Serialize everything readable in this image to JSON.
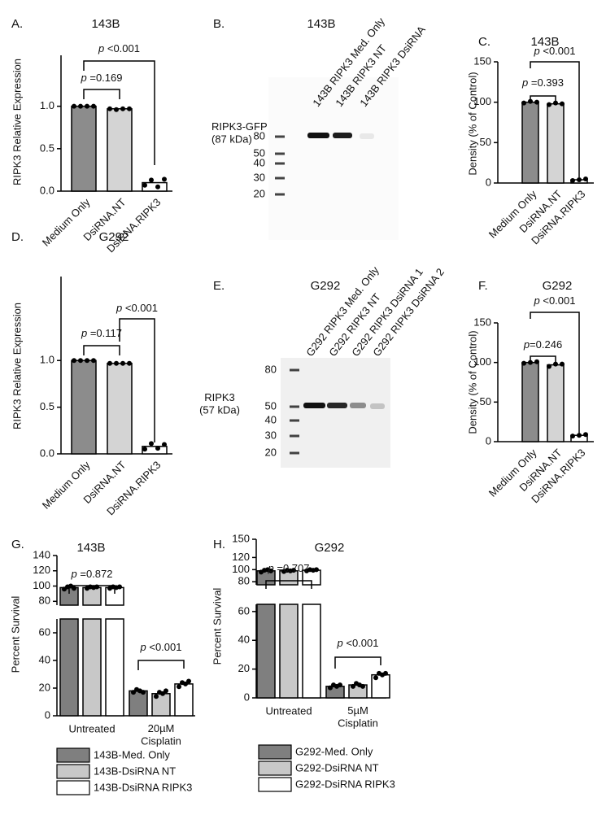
{
  "chart_data": [
    {
      "type": "bar",
      "panel": "A.",
      "title": "143B",
      "ylabel": "RIPK3 Relative Expression",
      "categories": [
        "Medium Only",
        "DsiRNA.NT",
        "DsiRNA.RIPK3"
      ],
      "values": [
        1.0,
        0.97,
        0.1
      ],
      "points": [
        [
          1.0,
          1.0,
          1.0,
          1.0
        ],
        [
          0.97,
          0.96,
          0.97,
          0.97
        ],
        [
          0.07,
          0.13,
          0.05,
          0.14
        ]
      ],
      "colors": [
        "#8c8c8c",
        "#d4d4d4",
        "#ffffff"
      ],
      "ylim": [
        0,
        1.6
      ],
      "yticks": [
        {
          "value": 0,
          "label": "0.0"
        },
        0.5,
        {
          "value": 1,
          "label": "1.0"
        }
      ],
      "annotations": [
        "p =0.169",
        "p <0.001"
      ]
    },
    {
      "type": "bar",
      "panel": "C.",
      "title": "143B",
      "ylabel": "Density (% of Control)",
      "categories": [
        "Medium Only",
        "DsiRNA.NT",
        "DsiRNA.RIPK3"
      ],
      "values": [
        100,
        98,
        4
      ],
      "points": [
        [
          99,
          101,
          100
        ],
        [
          97,
          99,
          98
        ],
        [
          3,
          4,
          5
        ]
      ],
      "colors": [
        "#8c8c8c",
        "#d4d4d4",
        "#ffffff"
      ],
      "ylim": [
        0,
        150
      ],
      "yticks": [
        0,
        50,
        100,
        150
      ],
      "annotations": [
        "p =0.393",
        "p <0.001"
      ]
    },
    {
      "type": "bar",
      "panel": "D.",
      "title": "G292",
      "ylabel": "RIPK3 Relative Expression",
      "categories": [
        "Medium Only",
        "DsiRNA.NT",
        "DsiRNA.RIPK3"
      ],
      "values": [
        1.0,
        0.97,
        0.08
      ],
      "points": [
        [
          1.0,
          1.0,
          1.0,
          1.0
        ],
        [
          0.97,
          0.97,
          0.97,
          0.97
        ],
        [
          0.05,
          0.11,
          0.06,
          0.1
        ]
      ],
      "colors": [
        "#8c8c8c",
        "#d4d4d4",
        "#ffffff"
      ],
      "ylim": [
        0,
        1.9
      ],
      "yticks": [
        {
          "value": 0,
          "label": "0.0"
        },
        0.5,
        {
          "value": 1,
          "label": "1.0"
        }
      ],
      "annotations": [
        "p =0.117",
        "p <0.001"
      ]
    },
    {
      "type": "bar",
      "panel": "F.",
      "title": "G292",
      "ylabel": "Density (% of Control)",
      "categories": [
        "Medium Only",
        "DsiRNA.NT",
        "DsiRNA.RIPK3"
      ],
      "values": [
        100,
        97,
        8
      ],
      "points": [
        [
          99,
          100,
          101
        ],
        [
          95,
          98,
          98
        ],
        [
          7,
          8,
          9
        ]
      ],
      "colors": [
        "#8c8c8c",
        "#d4d4d4",
        "#ffffff"
      ],
      "ylim": [
        0,
        150
      ],
      "yticks": [
        0,
        50,
        100,
        150
      ],
      "annotations": [
        "p=0.246",
        "p <0.001"
      ]
    },
    {
      "type": "grouped_bar",
      "panel": "G.",
      "title": "143B",
      "ylabel": "Percent Survival",
      "categories": [
        "Untreated",
        "20µM\nCisplatin"
      ],
      "series": [
        {
          "name": "143B-Med. Only",
          "color": "#7f7f7f",
          "values": [
            98,
            18
          ],
          "points": [
            [
              96,
              99,
              100,
              97
            ],
            [
              17,
              19,
              18,
              17
            ]
          ]
        },
        {
          "name": "143B-DsiRNA NT",
          "color": "#c8c8c8",
          "values": [
            98,
            16
          ],
          "points": [
            [
              97,
              99,
              98,
              99
            ],
            [
              14,
              17,
              16,
              18
            ]
          ]
        },
        {
          "name": "143B-DsiRNA RIPK3",
          "color": "#ffffff",
          "values": [
            98,
            23
          ],
          "points": [
            [
              97,
              99,
              98,
              99
            ],
            [
              21,
              24,
              23,
              25
            ]
          ]
        }
      ],
      "segments": [
        {
          "ylim": [
            0,
            70
          ],
          "yticks": [
            0,
            20,
            40,
            60
          ]
        },
        {
          "ylim": [
            75,
            140
          ],
          "yticks": [
            80,
            100,
            120,
            140
          ]
        }
      ],
      "annotations": [
        "p =0.872",
        "p <0.001"
      ]
    },
    {
      "type": "grouped_bar",
      "panel": "H.",
      "title": "G292",
      "ylabel": "Percent Survival",
      "categories": [
        "Untreated",
        "5µM\nCisplatin"
      ],
      "series": [
        {
          "name": "G292-Med. Only",
          "color": "#7f7f7f",
          "values": [
            98,
            8
          ],
          "points": [
            [
              96,
              99,
              100,
              98
            ],
            [
              7,
              9,
              8,
              9
            ]
          ]
        },
        {
          "name": "G292-DsiRNA NT",
          "color": "#c8c8c8",
          "values": [
            98,
            9
          ],
          "points": [
            [
              97,
              99,
              98,
              99
            ],
            [
              8,
              10,
              9,
              8
            ]
          ]
        },
        {
          "name": "G292-DsiRNA RIPK3",
          "color": "#ffffff",
          "values": [
            99,
            16
          ],
          "points": [
            [
              98,
              100,
              99,
              100
            ],
            [
              14,
              17,
              16,
              17
            ]
          ]
        }
      ],
      "segments": [
        {
          "ylim": [
            0,
            65
          ],
          "yticks": [
            0,
            20,
            40,
            60
          ]
        },
        {
          "ylim": [
            75,
            150
          ],
          "yticks": [
            80,
            100,
            120,
            150
          ]
        }
      ],
      "annotations": [
        "p =0.707",
        "p <0.001"
      ]
    }
  ],
  "blots": [
    {
      "panel": "B.",
      "title": "143B",
      "lanes": [
        "143B RIPK3 Med. Only",
        "143B RIPK3 NT",
        "143B RIPK3 DsiRNA"
      ],
      "band_label": "RIPK3-GFP\n(87 kDa)",
      "markers": [
        80,
        50,
        40,
        30,
        20
      ]
    },
    {
      "panel": "E.",
      "title": "G292",
      "lanes": [
        "G292 RIPK3 Med. Only",
        "G292 RIPK3 NT",
        "G292 RIPK3 DsiRNA 1",
        "G292 RIPK3 DsiRNA 2"
      ],
      "band_label": "RIPK3\n(57 kDa)",
      "markers": [
        80,
        50,
        40,
        30,
        20
      ]
    }
  ]
}
